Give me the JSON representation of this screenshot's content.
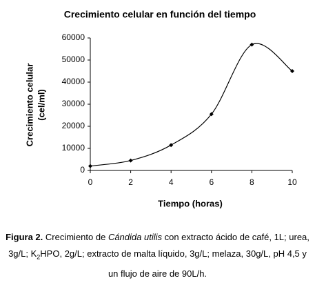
{
  "chart_data": {
    "type": "line",
    "title": "Crecimiento celular en función del tiempo",
    "x_label": "Tiempo (horas)",
    "y_label": [
      "Crecimiento celular",
      "(cel/ml)"
    ],
    "x": [
      0,
      2,
      4,
      6,
      8,
      10
    ],
    "series": [
      {
        "color": "#000000",
        "values": [
          2000,
          4500,
          11500,
          25500,
          57000,
          45000
        ]
      }
    ],
    "xlim": [
      0,
      10
    ],
    "xticks": [
      0,
      2,
      4,
      6,
      8,
      10
    ],
    "ylim": [
      0,
      60000
    ],
    "yticks": [
      0,
      10000,
      20000,
      30000,
      40000,
      50000,
      60000
    ],
    "grid": false,
    "smooth": true
  },
  "caption": {
    "label": "Figura 2.",
    "text_1": " Crecimiento de ",
    "species": "Cándida utilis",
    "text_2": " con extracto ácido de café, 1L; urea, 3g/L; K",
    "subscript": "2",
    "text_3": "HPO, 2g/L; extracto de malta líquido, 3g/L; melaza, 30g/L, pH 4,5 y un flujo de aire de 90L/h."
  }
}
